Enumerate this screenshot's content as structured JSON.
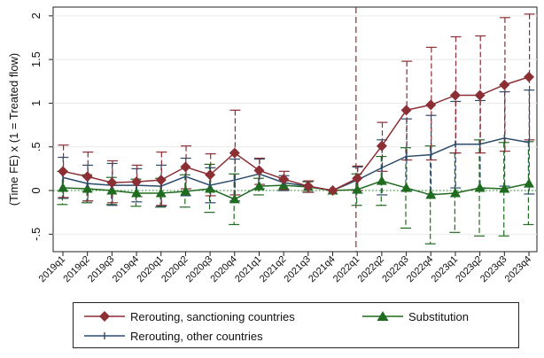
{
  "chart_data": {
    "type": "line",
    "ylabel": "(Time FE) x (1 = Treated flow)",
    "xlabel": "",
    "ylim": [
      -0.7,
      2.1
    ],
    "yticks": [
      -0.5,
      0,
      0.5,
      1,
      1.5,
      2
    ],
    "ytick_labels": [
      "-.5",
      "0",
      ".5",
      "1",
      "1.5",
      "2"
    ],
    "categories": [
      "2019q1",
      "2019q2",
      "2019q3",
      "2019q4",
      "2020q1",
      "2020q2",
      "2020q3",
      "2020q4",
      "2021q1",
      "2021q2",
      "2021q3",
      "2021q4",
      "2022q1",
      "2022q2",
      "2022q3",
      "2022q4",
      "2023q1",
      "2023q2",
      "2023q3",
      "2023q4"
    ],
    "vline_category": "2022q1",
    "zero_line": 0,
    "series": [
      {
        "name": "Rerouting, sanctioning countries",
        "color": "#8b2f35",
        "marker": "diamond",
        "values": [
          0.22,
          0.16,
          0.09,
          0.1,
          0.12,
          0.27,
          0.18,
          0.43,
          0.23,
          0.13,
          0.05,
          0.0,
          0.14,
          0.51,
          0.92,
          0.98,
          1.09,
          1.09,
          1.21,
          1.3
        ],
        "lower": [
          -0.08,
          -0.12,
          -0.14,
          -0.07,
          -0.17,
          0.02,
          -0.06,
          -0.05,
          0.07,
          0.01,
          -0.02,
          0.0,
          0.0,
          0.22,
          0.35,
          0.35,
          0.43,
          0.43,
          0.45,
          0.58
        ],
        "upper": [
          0.52,
          0.44,
          0.34,
          0.29,
          0.44,
          0.51,
          0.42,
          0.92,
          0.37,
          0.22,
          0.11,
          0.0,
          0.28,
          0.78,
          1.48,
          1.64,
          1.76,
          1.77,
          1.98,
          2.02
        ]
      },
      {
        "name": "Rerouting, other countries",
        "color": "#2b4b6b",
        "marker": "plus",
        "values": [
          0.15,
          0.08,
          0.06,
          0.06,
          0.05,
          0.16,
          0.06,
          0.12,
          0.19,
          0.09,
          0.05,
          0.0,
          0.12,
          0.26,
          0.39,
          0.41,
          0.53,
          0.53,
          0.6,
          0.55
        ],
        "lower": [
          -0.09,
          -0.12,
          -0.17,
          -0.13,
          -0.18,
          -0.06,
          -0.14,
          -0.12,
          0.02,
          0.0,
          -0.02,
          0.0,
          -0.03,
          -0.05,
          -0.01,
          -0.04,
          0.03,
          0.02,
          0.05,
          -0.04
        ],
        "upper": [
          0.38,
          0.29,
          0.31,
          0.25,
          0.29,
          0.37,
          0.26,
          0.36,
          0.36,
          0.17,
          0.11,
          0.0,
          0.27,
          0.58,
          0.82,
          0.86,
          1.02,
          1.03,
          1.13,
          1.15
        ]
      },
      {
        "name": "Substitution",
        "color": "#1f6b1f",
        "marker": "triangle",
        "values": [
          0.03,
          0.02,
          0.0,
          -0.03,
          -0.03,
          -0.01,
          0.02,
          -0.1,
          0.05,
          0.06,
          0.04,
          0.0,
          0.01,
          0.11,
          0.03,
          -0.05,
          -0.03,
          0.03,
          0.02,
          0.08
        ],
        "lower": [
          -0.16,
          -0.14,
          -0.16,
          -0.18,
          -0.19,
          -0.19,
          -0.25,
          -0.39,
          -0.05,
          0.0,
          -0.02,
          0.0,
          -0.17,
          -0.17,
          -0.43,
          -0.61,
          -0.48,
          -0.52,
          -0.52,
          -0.39
        ],
        "upper": [
          0.22,
          0.18,
          0.15,
          0.13,
          0.14,
          0.18,
          0.3,
          0.19,
          0.14,
          0.11,
          0.1,
          0.0,
          0.19,
          0.39,
          0.49,
          0.51,
          0.43,
          0.58,
          0.55,
          0.56
        ]
      }
    ]
  },
  "legend": {
    "items": [
      {
        "label": "Rerouting, sanctioning countries",
        "icon": "diamond-marker-icon"
      },
      {
        "label": "Substitution",
        "icon": "triangle-marker-icon"
      },
      {
        "label": "Rerouting, other countries",
        "icon": "plus-marker-icon"
      }
    ]
  }
}
